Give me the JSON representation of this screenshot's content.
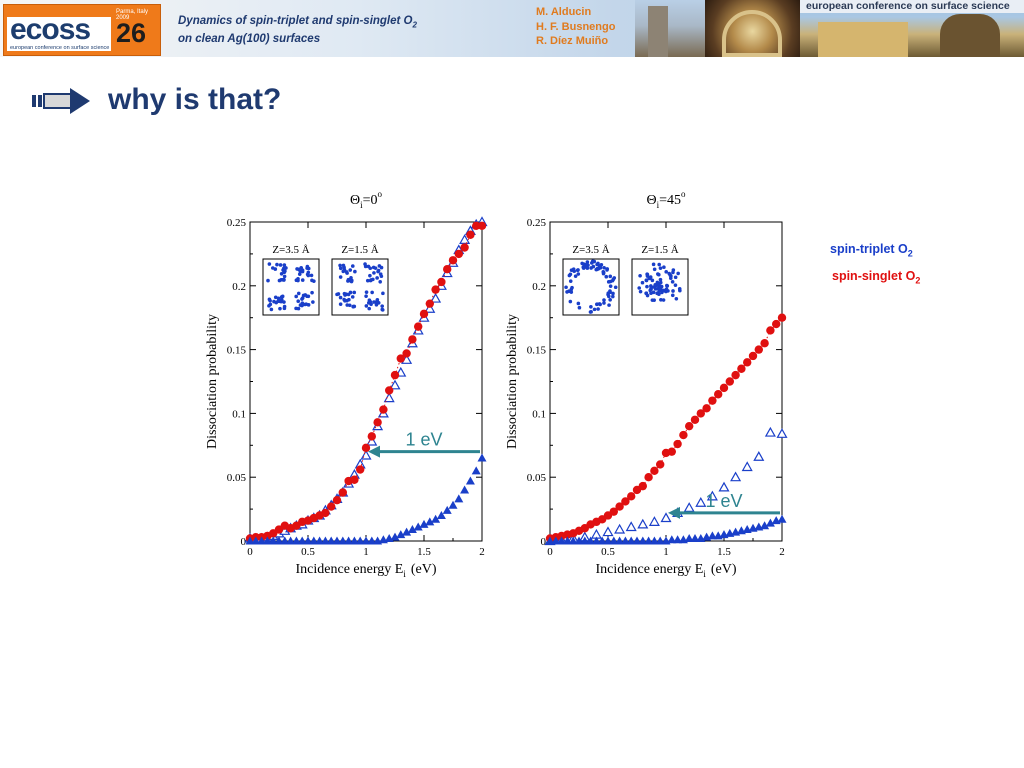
{
  "header": {
    "logo": {
      "name": "ecoss",
      "number": "26",
      "place": "Parma, Italy 2009",
      "subtitle": "european conference on surface science"
    },
    "talk_title_line1": "Dynamics of spin-triplet and spin-singlet O",
    "talk_title_sub": "2",
    "talk_title_line2": "on clean Ag(100) surfaces",
    "authors": [
      "M. Alducin",
      "H. F. Busnengo",
      "R. Díez Muiño"
    ],
    "conference": "european conference on surface science"
  },
  "slide": {
    "heading": "why is that?"
  },
  "legend": {
    "triplet_label": "spin-triplet O",
    "singlet_label": "spin-singlet O",
    "subscript": "2",
    "triplet_color": "#1a3fc9",
    "singlet_color": "#e01010"
  },
  "chart_data": [
    {
      "type": "scatter",
      "title_symbol": "Θ",
      "title_sub": "i",
      "title_rest": "=0",
      "title_sup": "o",
      "xlabel": "Incidence energy E",
      "xlabel_sub": "i",
      "xlabel_unit": "(eV)",
      "ylabel": "Dissociation probability",
      "xlim": [
        0,
        2
      ],
      "ylim": [
        0,
        0.25
      ],
      "x_ticks": [
        "0",
        "0.5",
        "1",
        "1.5",
        "2"
      ],
      "y_ticks": [
        "0",
        "0.05",
        "0.1",
        "0.15",
        "0.2",
        "0.25"
      ],
      "inset_labels": [
        "Z=3.5 Å",
        "Z=1.5 Å"
      ],
      "annotation": "1 eV",
      "annotation_x": 1.0,
      "annotation_y": 0.07,
      "series": [
        {
          "marker": "open-triangle",
          "color": "#1a3fc9",
          "x": [
            0,
            0.05,
            0.1,
            0.15,
            0.2,
            0.25,
            0.3,
            0.35,
            0.4,
            0.45,
            0.5,
            0.55,
            0.6,
            0.65,
            0.7,
            0.75,
            0.8,
            0.85,
            0.9,
            0.95,
            1.0,
            1.05,
            1.1,
            1.15,
            1.2,
            1.25,
            1.3,
            1.35,
            1.4,
            1.45,
            1.5,
            1.55,
            1.6,
            1.65,
            1.7,
            1.75,
            1.8,
            1.85,
            1.9,
            1.95,
            2.0
          ],
          "values": [
            0.002,
            0.002,
            0.002,
            0.003,
            0.004,
            0.006,
            0.008,
            0.01,
            0.012,
            0.013,
            0.016,
            0.018,
            0.02,
            0.024,
            0.028,
            0.033,
            0.038,
            0.045,
            0.052,
            0.06,
            0.067,
            0.078,
            0.09,
            0.1,
            0.112,
            0.122,
            0.132,
            0.142,
            0.155,
            0.165,
            0.175,
            0.182,
            0.19,
            0.2,
            0.21,
            0.218,
            0.228,
            0.236,
            0.243,
            0.248,
            0.25
          ]
        },
        {
          "marker": "filled-circle",
          "color": "#e01010",
          "x": [
            0,
            0.05,
            0.1,
            0.15,
            0.2,
            0.25,
            0.3,
            0.35,
            0.4,
            0.45,
            0.5,
            0.55,
            0.6,
            0.65,
            0.7,
            0.75,
            0.8,
            0.85,
            0.9,
            0.95,
            1.0,
            1.05,
            1.1,
            1.15,
            1.2,
            1.25,
            1.3,
            1.35,
            1.4,
            1.45,
            1.5,
            1.55,
            1.6,
            1.65,
            1.7,
            1.75,
            1.8,
            1.85,
            1.9,
            1.95,
            2.0
          ],
          "values": [
            0.002,
            0.003,
            0.003,
            0.004,
            0.006,
            0.009,
            0.012,
            0.01,
            0.012,
            0.015,
            0.016,
            0.018,
            0.02,
            0.022,
            0.027,
            0.032,
            0.038,
            0.047,
            0.048,
            0.056,
            0.073,
            0.082,
            0.093,
            0.103,
            0.118,
            0.13,
            0.143,
            0.147,
            0.158,
            0.168,
            0.178,
            0.186,
            0.197,
            0.203,
            0.213,
            0.22,
            0.225,
            0.23,
            0.24,
            0.247,
            0.247
          ]
        },
        {
          "marker": "filled-triangle",
          "color": "#1a3fc9",
          "x": [
            0,
            0.05,
            0.1,
            0.15,
            0.2,
            0.25,
            0.3,
            0.35,
            0.4,
            0.45,
            0.5,
            0.55,
            0.6,
            0.65,
            0.7,
            0.75,
            0.8,
            0.85,
            0.9,
            0.95,
            1.0,
            1.05,
            1.1,
            1.15,
            1.2,
            1.25,
            1.3,
            1.35,
            1.4,
            1.45,
            1.5,
            1.55,
            1.6,
            1.65,
            1.7,
            1.75,
            1.8,
            1.85,
            1.9,
            1.95,
            2.0
          ],
          "values": [
            0,
            0,
            0,
            0,
            0,
            0,
            0,
            0,
            0,
            0,
            0,
            0,
            0,
            0,
            0,
            0,
            0,
            0,
            0,
            0,
            0,
            0,
            0,
            0.001,
            0.002,
            0.003,
            0.005,
            0.007,
            0.009,
            0.011,
            0.013,
            0.015,
            0.017,
            0.02,
            0.024,
            0.028,
            0.033,
            0.04,
            0.047,
            0.055,
            0.065
          ]
        }
      ]
    },
    {
      "type": "scatter",
      "title_symbol": "Θ",
      "title_sub": "i",
      "title_rest": "=45",
      "title_sup": "o",
      "xlabel": "Incidence energy E",
      "xlabel_sub": "i",
      "xlabel_unit": "(eV)",
      "ylabel": "Dissociation probability",
      "xlim": [
        0,
        2
      ],
      "ylim": [
        0,
        0.25
      ],
      "x_ticks": [
        "0",
        "0.5",
        "1",
        "1.5",
        "2"
      ],
      "y_ticks": [
        "0",
        "0.05",
        "0.1",
        "0.15",
        "0.2",
        "0.25"
      ],
      "inset_labels": [
        "Z=3.5 Å",
        "Z=1.5 Å"
      ],
      "annotation": "1 eV",
      "annotation_x": 1.0,
      "annotation_y": 0.022,
      "series": [
        {
          "marker": "open-triangle",
          "color": "#1a3fc9",
          "x": [
            0,
            0.1,
            0.2,
            0.3,
            0.4,
            0.5,
            0.6,
            0.7,
            0.8,
            0.9,
            1.0,
            1.1,
            1.2,
            1.3,
            1.4,
            1.5,
            1.6,
            1.7,
            1.8,
            1.9,
            2.0
          ],
          "values": [
            0,
            0.001,
            0.002,
            0.003,
            0.005,
            0.007,
            0.009,
            0.011,
            0.013,
            0.015,
            0.018,
            0.022,
            0.026,
            0.03,
            0.035,
            0.042,
            0.05,
            0.058,
            0.066,
            0.085,
            0.084
          ]
        },
        {
          "marker": "filled-circle",
          "color": "#e01010",
          "x": [
            0,
            0.05,
            0.1,
            0.15,
            0.2,
            0.25,
            0.3,
            0.35,
            0.4,
            0.45,
            0.5,
            0.55,
            0.6,
            0.65,
            0.7,
            0.75,
            0.8,
            0.85,
            0.9,
            0.95,
            1.0,
            1.05,
            1.1,
            1.15,
            1.2,
            1.25,
            1.3,
            1.35,
            1.4,
            1.45,
            1.5,
            1.55,
            1.6,
            1.65,
            1.7,
            1.75,
            1.8,
            1.85,
            1.9,
            1.95,
            2.0
          ],
          "values": [
            0.002,
            0.003,
            0.004,
            0.005,
            0.006,
            0.008,
            0.01,
            0.013,
            0.015,
            0.017,
            0.02,
            0.023,
            0.027,
            0.031,
            0.035,
            0.04,
            0.043,
            0.05,
            0.055,
            0.06,
            0.069,
            0.07,
            0.076,
            0.083,
            0.09,
            0.095,
            0.1,
            0.104,
            0.11,
            0.115,
            0.12,
            0.125,
            0.13,
            0.135,
            0.14,
            0.145,
            0.15,
            0.155,
            0.165,
            0.17,
            0.175
          ]
        },
        {
          "marker": "filled-triangle",
          "color": "#1a3fc9",
          "x": [
            0,
            0.05,
            0.1,
            0.15,
            0.2,
            0.25,
            0.3,
            0.35,
            0.4,
            0.45,
            0.5,
            0.55,
            0.6,
            0.65,
            0.7,
            0.75,
            0.8,
            0.85,
            0.9,
            0.95,
            1.0,
            1.05,
            1.1,
            1.15,
            1.2,
            1.25,
            1.3,
            1.35,
            1.4,
            1.45,
            1.5,
            1.55,
            1.6,
            1.65,
            1.7,
            1.75,
            1.8,
            1.85,
            1.9,
            1.95,
            2.0
          ],
          "values": [
            0,
            0,
            0,
            0,
            0,
            0,
            0,
            0,
            0,
            0,
            0,
            0,
            0,
            0,
            0,
            0,
            0,
            0,
            0,
            0,
            0,
            0.001,
            0.001,
            0.001,
            0.002,
            0.002,
            0.002,
            0.003,
            0.004,
            0.004,
            0.005,
            0.006,
            0.007,
            0.008,
            0.009,
            0.01,
            0.011,
            0.012,
            0.014,
            0.016,
            0.017
          ]
        }
      ]
    }
  ]
}
